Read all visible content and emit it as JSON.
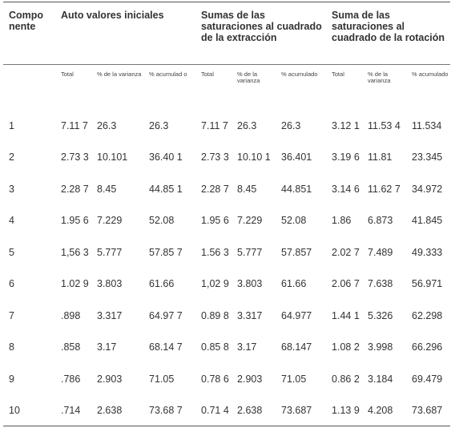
{
  "header": {
    "component": "Compo nente",
    "group1": "Auto valores iniciales",
    "group2": "Sumas de las saturaciones al cuadrado de la extracción",
    "group3": "Suma de las saturaciones al cuadrado de la rotación"
  },
  "subheaders": [
    "Total",
    "% de la varianza",
    "% acumulad o",
    "Total",
    "% de la varianza",
    "% acumulado",
    "Total",
    "% de la varianza",
    "% acumulado"
  ],
  "rows": [
    [
      "1",
      "7.11 7",
      "26.3",
      "26.3",
      "7.11 7",
      "26.3",
      "26.3",
      "3.12 1",
      "11.53 4",
      "11.534"
    ],
    [
      "2",
      "2.73 3",
      "10.101",
      "36.40 1",
      "2.73 3",
      "10.10 1",
      "36.401",
      "3.19 6",
      "11.81",
      "23.345"
    ],
    [
      "3",
      "2.28 7",
      "8.45",
      "44.85 1",
      "2.28 7",
      "8.45",
      "44.851",
      "3.14 6",
      "11.62 7",
      "34.972"
    ],
    [
      "4",
      "1.95 6",
      "7.229",
      "52.08",
      "1.95 6",
      "7.229",
      "52.08",
      "1.86",
      "6.873",
      "41.845"
    ],
    [
      "5",
      "1,56 3",
      "5.777",
      "57.85 7",
      "1.56 3",
      "5.777",
      "57.857",
      "2.02 7",
      "7.489",
      "49.333"
    ],
    [
      "6",
      "1.02 9",
      "3.803",
      "61.66",
      "1,02 9",
      "3.803",
      "61.66",
      "2.06 7",
      "7.638",
      "56.971"
    ],
    [
      "7",
      ".898",
      "3.317",
      "64.97 7",
      "0.89 8",
      "3.317",
      "64.977",
      "1.44 1",
      "5.326",
      "62.298"
    ],
    [
      "8",
      ".858",
      "3.17",
      "68.14 7",
      "0.85 8",
      "3.17",
      "68.147",
      "1.08 2",
      "3.998",
      "66.296"
    ],
    [
      "9",
      ".786",
      "2.903",
      "71.05",
      "0.78 6",
      "2.903",
      "71.05",
      "0.86 2",
      "3.184",
      "69.479"
    ],
    [
      "10",
      ".714",
      "2.638",
      "73.68 7",
      "0.71 4",
      "2.638",
      "73.687",
      "1.13 9",
      "4.208",
      "73.687"
    ]
  ]
}
